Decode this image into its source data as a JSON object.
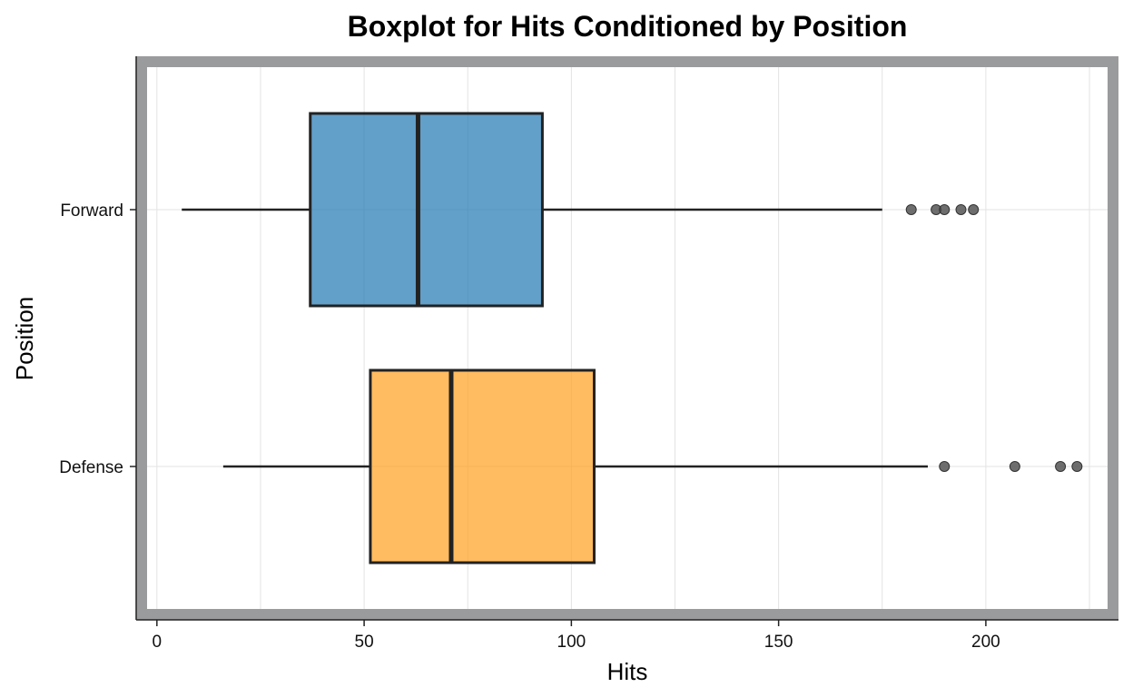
{
  "chart_data": {
    "type": "boxplot",
    "orientation": "horizontal",
    "title": "Boxplot for Hits Conditioned by Position",
    "xlabel": "Hits",
    "ylabel": "Position",
    "xlim": [
      -5,
      232
    ],
    "xticks": [
      0,
      50,
      100,
      150,
      200
    ],
    "x_tick_labels": [
      "0",
      "50",
      "100",
      "150",
      "200"
    ],
    "grid": true,
    "categories": [
      "Forward",
      "Defense"
    ],
    "series": [
      {
        "category": "Forward",
        "color": "#1f77b4",
        "whisker_low": 6,
        "q1": 37,
        "median": 63,
        "q3": 93,
        "whisker_high": 175,
        "outliers": [
          182,
          188,
          190,
          194,
          197
        ]
      },
      {
        "category": "Defense",
        "color": "#ff9f1c",
        "whisker_low": 16,
        "q1": 51.5,
        "median": 71,
        "q3": 105.5,
        "whisker_high": 186,
        "outliers": [
          190,
          207,
          218,
          222
        ]
      }
    ],
    "colors": {
      "frame": "#9a9b9d",
      "box_edge": "#222222",
      "grid": "#e3e3e3",
      "outlier": "#4a4a4a"
    }
  }
}
